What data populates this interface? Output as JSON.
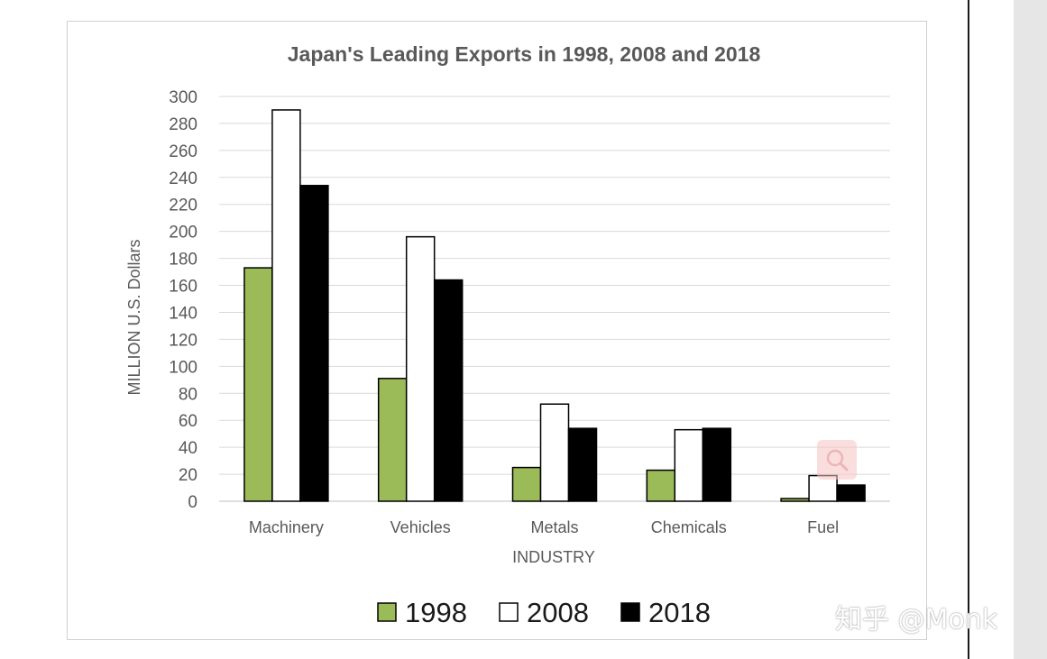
{
  "chart_data": {
    "type": "bar",
    "title": "Japan's Leading Exports in 1998, 2008 and 2018",
    "xlabel": "INDUSTRY",
    "ylabel": "MILLION U.S. Dollars",
    "categories": [
      "Machinery",
      "Vehicles",
      "Metals",
      "Chemicals",
      "Fuel"
    ],
    "series": [
      {
        "name": "1998",
        "values": [
          173,
          91,
          25,
          23,
          2
        ],
        "color": "#9bbb59"
      },
      {
        "name": "2008",
        "values": [
          290,
          196,
          72,
          53,
          19
        ],
        "color": "#ffffff"
      },
      {
        "name": "2018",
        "values": [
          234,
          164,
          54,
          54,
          12
        ],
        "color": "#000000"
      }
    ],
    "ylim": [
      0,
      300
    ],
    "yticks": [
      0,
      20,
      40,
      60,
      80,
      100,
      120,
      140,
      160,
      180,
      200,
      220,
      240,
      260,
      280,
      300
    ],
    "grid": true,
    "legend": "bottom"
  },
  "watermark": {
    "text": "知乎 @Monk"
  },
  "icons": {
    "zoom": "search-icon"
  }
}
